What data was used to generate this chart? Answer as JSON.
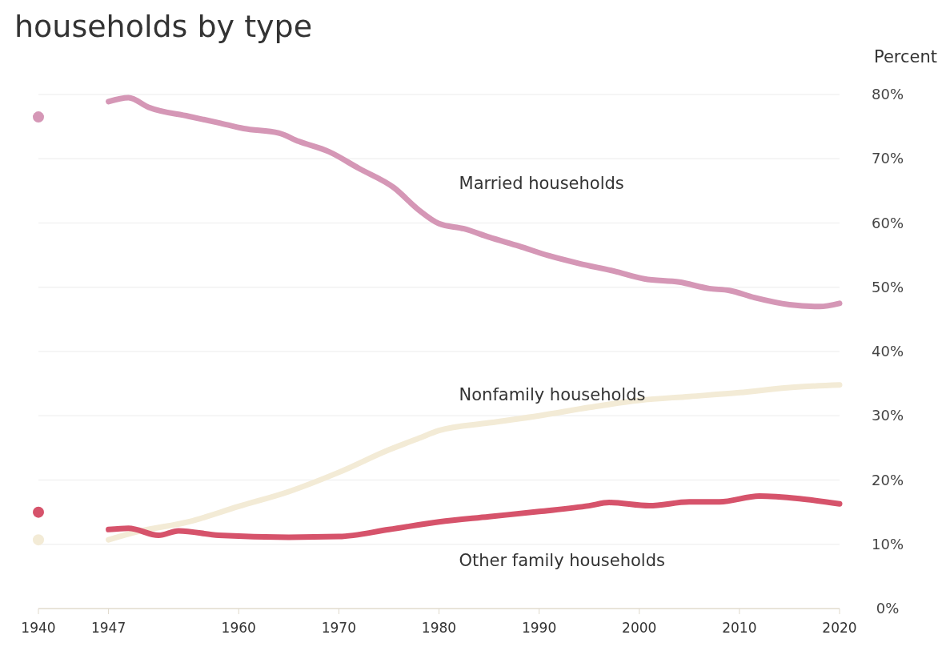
{
  "chart_data": {
    "type": "line",
    "title": "households by type",
    "ylabel": "Percent",
    "xlim": [
      1940,
      2020
    ],
    "xticks": [
      1940,
      1947,
      1960,
      1970,
      1980,
      1990,
      2000,
      2010,
      2020
    ],
    "ylim": [
      0,
      80
    ],
    "yticks": [
      {
        "value": 0,
        "label": "0%"
      },
      {
        "value": 10,
        "label": "10%"
      },
      {
        "value": 20,
        "label": "20%"
      },
      {
        "value": 30,
        "label": "30%"
      },
      {
        "value": 40,
        "label": "40%"
      },
      {
        "value": 50,
        "label": "50%"
      },
      {
        "value": 60,
        "label": "60%"
      },
      {
        "value": 70,
        "label": "70%"
      },
      {
        "value": 80,
        "label": "80%"
      }
    ],
    "grid": "y",
    "legend": false,
    "series": [
      {
        "name": "Married households",
        "color": "#d597b6",
        "x": [
          1947,
          1949,
          1951,
          1955,
          1958,
          1960.5,
          1964,
          1966,
          1969,
          1972,
          1975.5,
          1978,
          1980,
          1982.5,
          1985,
          1988,
          1991,
          1994,
          1997.5,
          2000.5,
          2004,
          2007,
          2009,
          2011.5,
          2015,
          2018,
          2020
        ],
        "values": [
          78.9,
          79.5,
          78,
          76.6,
          75.6,
          74.7,
          74,
          72.7,
          71.1,
          68.5,
          65.5,
          62,
          59.9,
          59.1,
          57.8,
          56.4,
          54.9,
          53.7,
          52.5,
          51.3,
          50.8,
          49.8,
          49.5,
          48.4,
          47.3,
          47,
          47.5
        ]
      },
      {
        "name": "Nonfamily households",
        "color": "#f3ebd6",
        "x": [
          1947,
          1950,
          1955,
          1960,
          1965,
          1970,
          1975,
          1978,
          1980,
          1985,
          1990,
          1995,
          2000,
          2005,
          2010,
          2015,
          2020
        ],
        "values": [
          10.7,
          12,
          13.5,
          15.9,
          18.2,
          21.2,
          24.7,
          26.5,
          27.7,
          28.9,
          30,
          31.3,
          32.4,
          33,
          33.6,
          34.4,
          34.8
        ]
      },
      {
        "name": "Other family households",
        "color": "#d6536b",
        "x": [
          1947,
          1949,
          1952,
          1954,
          1958,
          1965,
          1970,
          1975,
          1980,
          1985,
          1990,
          1995,
          1997,
          2001,
          2005,
          2008,
          2012,
          2016,
          2020
        ],
        "values": [
          12.3,
          12.5,
          11.4,
          12.1,
          11.4,
          11.1,
          11.2,
          12.3,
          13.5,
          14.3,
          15.1,
          16,
          16.5,
          16,
          16.6,
          16.6,
          17.5,
          17.1,
          16.3
        ]
      },
      {
        "type": "scatter",
        "color": "#d597b6",
        "x": [
          1940
        ],
        "values": [
          76.5
        ]
      },
      {
        "type": "scatter",
        "color": "#f3ebd6",
        "x": [
          1940
        ],
        "values": [
          10.7
        ]
      },
      {
        "type": "scatter",
        "color": "#d6536b",
        "x": [
          1940
        ],
        "values": [
          15
        ]
      }
    ]
  }
}
